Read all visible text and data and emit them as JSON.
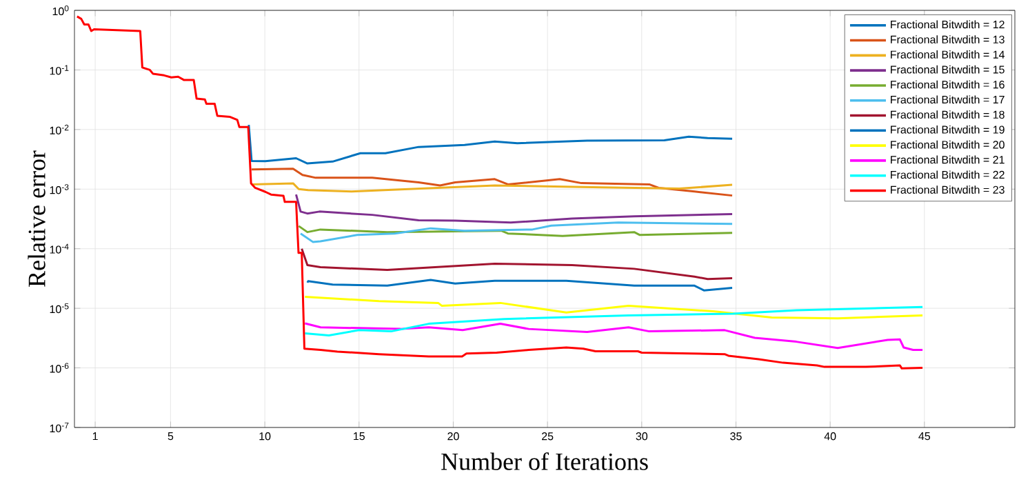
{
  "chart_data": {
    "type": "line",
    "xlabel": "Number of Iterations",
    "ylabel": "Relative error",
    "xlim": [
      -0.1,
      49.8
    ],
    "ylim": [
      1e-07,
      1
    ],
    "log": "y",
    "grid": true,
    "legend": "top right",
    "xticks": [
      1,
      5,
      10,
      15,
      20,
      25,
      30,
      35,
      40,
      45
    ],
    "yticks": [
      {
        "value": 1e-07,
        "label": "10$^{-7}$"
      },
      {
        "value": 1e-06,
        "label": "10$^{-6}$"
      },
      {
        "value": 1e-05,
        "label": "10$^{-5}$"
      },
      {
        "value": 0.0001,
        "label": "10$^{-4}$"
      },
      {
        "value": 0.001,
        "label": "10$^{-3}$"
      },
      {
        "value": 0.01,
        "label": "10$^{-2}$"
      },
      {
        "value": 0.1,
        "label": "10$^{-1}$"
      },
      {
        "value": 1,
        "label": "10$^{0}$"
      }
    ],
    "series": [
      {
        "name": "Fractional Bitwdith = 12",
        "color": "#0072bd",
        "x": [
          9.15,
          9.3,
          10.03,
          11.66,
          12.26,
          13.6,
          15.07,
          16.4,
          18.16,
          20.6,
          22.2,
          23.4,
          27.1,
          31.2,
          32.5,
          33.5,
          34.8
        ],
        "values": [
          0.012,
          0.00297,
          0.00295,
          0.0033,
          0.0027,
          0.0029,
          0.004,
          0.004,
          0.0051,
          0.0055,
          0.0063,
          0.0059,
          0.0065,
          0.0066,
          0.0076,
          0.0072,
          0.007
        ]
      },
      {
        "name": "Fractional Bitwdith = 13",
        "color": "#d95319",
        "x": [
          9.3,
          11.5,
          12.0,
          12.7,
          15.7,
          18.16,
          19.3,
          20.1,
          22.2,
          22.9,
          25.65,
          26.8,
          30.4,
          30.9,
          32.8,
          34.8
        ],
        "values": [
          0.00214,
          0.0022,
          0.00173,
          0.00155,
          0.00155,
          0.0013,
          0.00115,
          0.0013,
          0.00147,
          0.0012,
          0.00147,
          0.00126,
          0.0012,
          0.00105,
          0.00091,
          0.00078
        ]
      },
      {
        "name": "Fractional Bitwdith = 14",
        "color": "#edb120",
        "x": [
          9.3,
          11.5,
          11.8,
          12.3,
          14.6,
          19.8,
          22.2,
          27.9,
          32.0,
          34.8
        ],
        "values": [
          0.0012,
          0.00125,
          0.001,
          0.00096,
          0.00091,
          0.00107,
          0.00115,
          0.00107,
          0.00102,
          0.00118
        ]
      },
      {
        "name": "Fractional Bitwdith = 15",
        "color": "#7e2f8e",
        "x": [
          11.66,
          11.9,
          12.26,
          12.9,
          15.7,
          18.16,
          20.1,
          23.05,
          26.3,
          29.6,
          34.8
        ],
        "values": [
          0.00081,
          0.00042,
          0.00039,
          0.00042,
          0.00037,
          0.0003,
          0.000295,
          0.000275,
          0.00032,
          0.00035,
          0.00038
        ]
      },
      {
        "name": "Fractional Bitwdith = 16",
        "color": "#77ac30",
        "x": [
          11.8,
          12.26,
          12.95,
          16.5,
          22.55,
          22.9,
          25.8,
          29.6,
          29.9,
          34.8
        ],
        "values": [
          0.00024,
          0.00019,
          0.00021,
          0.00019,
          0.0002,
          0.00018,
          0.000164,
          0.00019,
          0.00017,
          0.000185
        ]
      },
      {
        "name": "Fractional Bitwdith = 17",
        "color": "#4dbeee",
        "x": [
          11.9,
          12.55,
          12.95,
          14.9,
          16.9,
          18.8,
          20.6,
          24.2,
          25.2,
          28.75,
          34.8
        ],
        "values": [
          0.00018,
          0.00013,
          0.000133,
          0.00017,
          0.00018,
          0.00022,
          0.0002,
          0.00021,
          0.000244,
          0.000275,
          0.00026
        ]
      },
      {
        "name": "Fractional Bitwdith = 18",
        "color": "#a2142f",
        "x": [
          11.96,
          12.26,
          12.95,
          16.5,
          22.2,
          26.3,
          29.6,
          32.8,
          33.5,
          34.8
        ],
        "values": [
          0.0001,
          5.3e-05,
          4.9e-05,
          4.4e-05,
          5.6e-05,
          5.3e-05,
          4.6e-05,
          3.4e-05,
          3.1e-05,
          3.2e-05
        ]
      },
      {
        "name": "Fractional Bitwdith = 19",
        "color": "#0072bd",
        "x": [
          12.26,
          12.3,
          13.6,
          16.5,
          18.8,
          20.1,
          22.2,
          26.0,
          29.6,
          32.8,
          33.3,
          34.8
        ],
        "values": [
          2.7e-05,
          2.85e-05,
          2.5e-05,
          2.4e-05,
          3e-05,
          2.6e-05,
          2.9e-05,
          2.9e-05,
          2.4e-05,
          2.4e-05,
          2e-05,
          2.2e-05
        ]
      },
      {
        "name": "Fractional Bitwdith = 20",
        "color": "#ffff00",
        "x": [
          12.13,
          16.06,
          19.2,
          19.4,
          22.5,
          26.0,
          29.3,
          33.8,
          36.9,
          40.4,
          44.9
        ],
        "values": [
          1.56e-05,
          1.32e-05,
          1.23e-05,
          1.1e-05,
          1.23e-05,
          8.5e-06,
          1.1e-05,
          8.9e-06,
          7e-06,
          6.8e-06,
          7.6e-06
        ]
      },
      {
        "name": "Fractional Bitwdith = 21",
        "color": "#ff00ff",
        "x": [
          12.13,
          12.96,
          17.2,
          18.7,
          20.5,
          22.5,
          24.0,
          27.1,
          29.3,
          30.4,
          34.4,
          36.0,
          38.2,
          40.4,
          43.05,
          43.7,
          43.9,
          44.4,
          44.9
        ],
        "values": [
          5.6e-06,
          4.8e-06,
          4.5e-06,
          4.8e-06,
          4.3e-06,
          5.5e-06,
          4.5e-06,
          4e-06,
          4.8e-06,
          4.1e-06,
          4.3e-06,
          3.2e-06,
          2.75e-06,
          2.15e-06,
          2.95e-06,
          3e-06,
          2.2e-06,
          2e-06,
          2e-06
        ]
      },
      {
        "name": "Fractional Bitwdith = 22",
        "color": "#00ffff",
        "x": [
          12.13,
          13.4,
          15.0,
          16.7,
          18.7,
          22.7,
          29.3,
          34.85,
          38.2,
          44.9
        ],
        "values": [
          3.8e-06,
          3.5e-06,
          4.3e-06,
          4.1e-06,
          5.5e-06,
          6.6e-06,
          7.6e-06,
          8.1e-06,
          9.3e-06,
          1.05e-05
        ]
      },
      {
        "name": "Fractional Bitwdith = 23",
        "color": "#ff0000",
        "x": [
          0.04,
          0.26,
          0.42,
          0.64,
          0.79,
          0.94,
          3.39,
          3.5,
          3.9,
          4.07,
          4.66,
          5.04,
          5.4,
          5.7,
          6.23,
          6.38,
          6.82,
          6.9,
          7.34,
          7.48,
          8.16,
          8.54,
          8.65,
          9.12,
          9.27,
          9.49,
          10.03,
          10.33,
          10.99,
          11.06,
          11.66,
          11.79,
          11.96,
          12.1,
          12.96,
          13.85,
          16.06,
          18.7,
          20.47,
          20.7,
          22.3,
          24.0,
          26.0,
          26.9,
          27.55,
          29.8,
          30.0,
          34.4,
          34.6,
          36.2,
          37.5,
          39.3,
          39.7,
          41.9,
          43.7,
          43.8,
          44.9
        ],
        "values": [
          0.79,
          0.72,
          0.58,
          0.58,
          0.45,
          0.48,
          0.45,
          0.11,
          0.1,
          0.086,
          0.081,
          0.075,
          0.077,
          0.068,
          0.068,
          0.033,
          0.032,
          0.027,
          0.027,
          0.017,
          0.0163,
          0.0145,
          0.011,
          0.011,
          0.00125,
          0.00105,
          0.0009,
          0.00081,
          0.00077,
          0.00061,
          0.00061,
          8.5e-05,
          8.5e-05,
          2.1e-06,
          2e-06,
          1.88e-06,
          1.7e-06,
          1.56e-06,
          1.56e-06,
          1.74e-06,
          1.8e-06,
          2e-06,
          2.2e-06,
          2.1e-06,
          1.9e-06,
          1.9e-06,
          1.8e-06,
          1.7e-06,
          1.6e-06,
          1.4e-06,
          1.22e-06,
          1.1e-06,
          1.04e-06,
          1.04e-06,
          1.1e-06,
          9.8e-07,
          1e-06
        ]
      }
    ]
  }
}
